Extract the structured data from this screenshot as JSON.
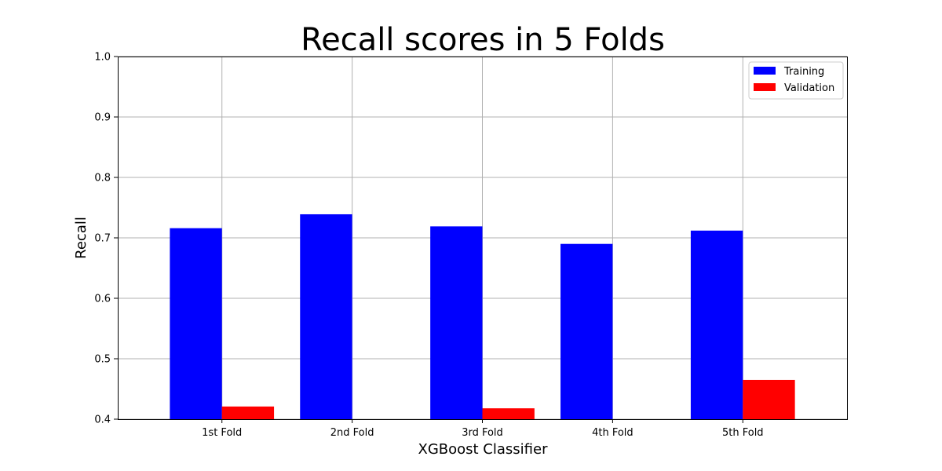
{
  "chart_data": {
    "type": "bar",
    "title": "Recall scores in 5 Folds",
    "xlabel": "XGBoost Classifier",
    "ylabel": "Recall",
    "categories": [
      "1st Fold",
      "2nd Fold",
      "3rd Fold",
      "4th Fold",
      "5th Fold"
    ],
    "series": [
      {
        "name": "Training",
        "color": "#0000ff",
        "values": [
          0.716,
          0.739,
          0.719,
          0.69,
          0.712
        ]
      },
      {
        "name": "Validation",
        "color": "#ff0000",
        "values": [
          0.421,
          0.4,
          0.418,
          0.4,
          0.465
        ]
      }
    ],
    "ylim": [
      0.4,
      1.0
    ],
    "yticks": [
      "0.4",
      "0.5",
      "0.6",
      "0.7",
      "0.8",
      "0.9",
      "1.0"
    ],
    "grid": true,
    "legend_position": "top-right"
  }
}
